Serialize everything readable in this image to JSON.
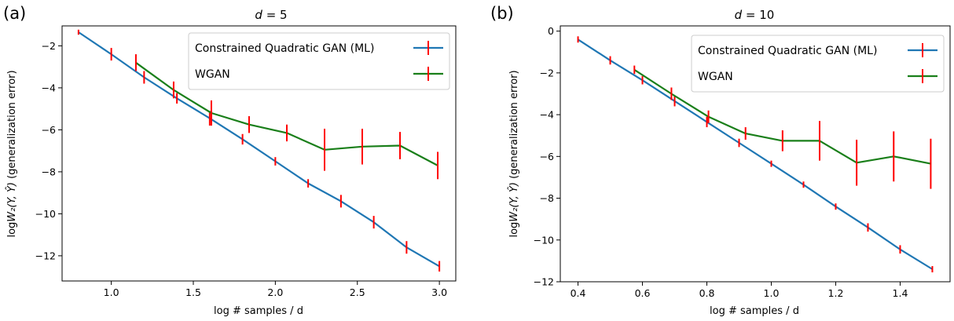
{
  "colors": {
    "ml": "#1f77b4",
    "wgan": "#1a7f1a",
    "errorbar": "#ff0000"
  },
  "chart_data": [
    {
      "type": "line",
      "panel_label": "(a)",
      "title_var": "d",
      "title_val": " = 5",
      "xlabel": "log # samples / d",
      "ylabel_prefix": "log",
      "ylabel_math": "W₂(Y, Ŷ)",
      "ylabel_suffix": " (generalization error)",
      "xlim": [
        0.7,
        3.1
      ],
      "ylim": [
        -13.2,
        -1.05
      ],
      "xticks": [
        1.0,
        1.5,
        2.0,
        2.5,
        3.0
      ],
      "xtick_labels": [
        "1.0",
        "1.5",
        "2.0",
        "2.5",
        "3.0"
      ],
      "yticks": [
        -12,
        -10,
        -8,
        -6,
        -4,
        -2
      ],
      "ytick_labels": [
        "−12",
        "−10",
        "−8",
        "−6",
        "−4",
        "−2"
      ],
      "legend_position": "top-right",
      "series": [
        {
          "name": "Constrained Quadratic GAN (ML)",
          "x": [
            0.8,
            1.0,
            1.2,
            1.4,
            1.6,
            1.8,
            2.0,
            2.2,
            2.4,
            2.6,
            2.8,
            3.0
          ],
          "y": [
            -1.35,
            -2.4,
            -3.5,
            -4.5,
            -5.45,
            -6.45,
            -7.5,
            -8.55,
            -9.4,
            -10.4,
            -11.6,
            -12.5
          ],
          "err": [
            0.12,
            0.3,
            0.3,
            0.25,
            0.35,
            0.25,
            0.2,
            0.2,
            0.3,
            0.3,
            0.3,
            0.25
          ]
        },
        {
          "name": "WGAN",
          "x": [
            1.15,
            1.38,
            1.61,
            1.84,
            2.07,
            2.3,
            2.53,
            2.76,
            2.99
          ],
          "y": [
            -2.8,
            -4.1,
            -5.2,
            -5.75,
            -6.15,
            -6.95,
            -6.8,
            -6.75,
            -7.7
          ],
          "err": [
            0.4,
            0.4,
            0.6,
            0.4,
            0.4,
            1.0,
            0.85,
            0.65,
            0.65
          ]
        }
      ]
    },
    {
      "type": "line",
      "panel_label": "(b)",
      "title_var": "d",
      "title_val": " = 10",
      "xlabel": "log # samples / d",
      "ylabel_prefix": "log",
      "ylabel_math": "W₂(Y, Ŷ)",
      "ylabel_suffix": " (generalization error)",
      "xlim": [
        0.345,
        1.555
      ],
      "ylim": [
        -12.0,
        0.25
      ],
      "xticks": [
        0.4,
        0.6,
        0.8,
        1.0,
        1.2,
        1.4
      ],
      "xtick_labels": [
        "0.4",
        "0.6",
        "0.8",
        "1.0",
        "1.2",
        "1.4"
      ],
      "yticks": [
        -12,
        -10,
        -8,
        -6,
        -4,
        -2,
        0
      ],
      "ytick_labels": [
        "−12",
        "−10",
        "−8",
        "−6",
        "−4",
        "−2",
        "0"
      ],
      "legend_position": "top-right",
      "series": [
        {
          "name": "Constrained Quadratic GAN (ML)",
          "x": [
            0.4,
            0.5,
            0.6,
            0.7,
            0.8,
            0.9,
            1.0,
            1.1,
            1.2,
            1.3,
            1.4,
            1.5
          ],
          "y": [
            -0.4,
            -1.4,
            -2.35,
            -3.35,
            -4.35,
            -5.35,
            -6.35,
            -7.35,
            -8.4,
            -9.4,
            -10.45,
            -11.4
          ],
          "err": [
            0.15,
            0.2,
            0.2,
            0.25,
            0.25,
            0.2,
            0.15,
            0.15,
            0.15,
            0.2,
            0.2,
            0.15
          ]
        },
        {
          "name": "WGAN",
          "x": [
            0.575,
            0.69,
            0.805,
            0.92,
            1.035,
            1.15,
            1.265,
            1.38,
            1.495
          ],
          "y": [
            -1.85,
            -3.0,
            -4.1,
            -4.9,
            -5.25,
            -5.25,
            -6.3,
            -6.0,
            -6.35
          ],
          "err": [
            0.2,
            0.3,
            0.3,
            0.3,
            0.5,
            0.95,
            1.1,
            1.2,
            1.2
          ]
        }
      ]
    }
  ]
}
